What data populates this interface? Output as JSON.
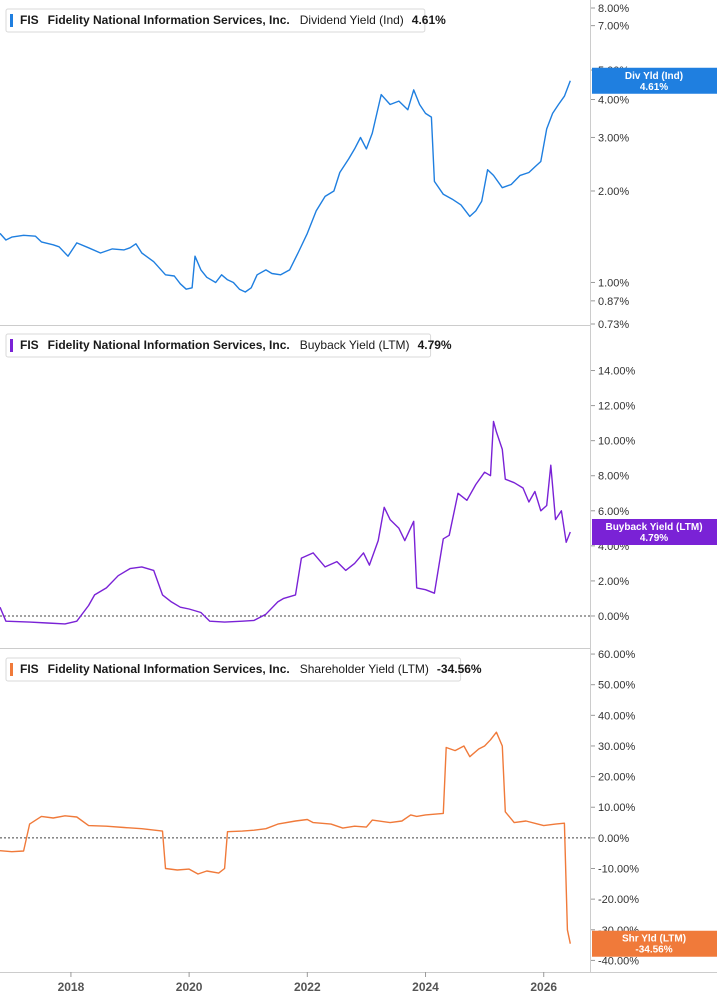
{
  "chart_data": [
    {
      "type": "line",
      "ticker": "FIS",
      "company": "Fidelity National Information Services, Inc.",
      "metric": "Dividend Yield (Ind)",
      "current": "4.61%",
      "badge_label": "Div Yld (Ind)",
      "badge_value": "4.61%",
      "color": "#1f7fe0",
      "scale": "log",
      "ylim": [
        0.73,
        8.0
      ],
      "y_ticks": [
        {
          "v": 8.0,
          "label": "8.00%"
        },
        {
          "v": 7.0,
          "label": "7.00%"
        },
        {
          "v": 5.0,
          "label": "5.00%"
        },
        {
          "v": 4.0,
          "label": "4.00%"
        },
        {
          "v": 3.0,
          "label": "3.00%"
        },
        {
          "v": 2.0,
          "label": "2.00%"
        },
        {
          "v": 1.0,
          "label": "1.00%"
        },
        {
          "v": 0.87,
          "label": "0.87%"
        },
        {
          "v": 0.73,
          "label": "0.73%"
        }
      ],
      "zero_line": false,
      "points": [
        [
          2016.8,
          1.45
        ],
        [
          2016.9,
          1.38
        ],
        [
          2017.0,
          1.41
        ],
        [
          2017.2,
          1.43
        ],
        [
          2017.4,
          1.42
        ],
        [
          2017.5,
          1.36
        ],
        [
          2017.7,
          1.33
        ],
        [
          2017.8,
          1.31
        ],
        [
          2017.95,
          1.22
        ],
        [
          2018.1,
          1.35
        ],
        [
          2018.3,
          1.3
        ],
        [
          2018.5,
          1.25
        ],
        [
          2018.7,
          1.29
        ],
        [
          2018.9,
          1.28
        ],
        [
          2019.0,
          1.3
        ],
        [
          2019.1,
          1.34
        ],
        [
          2019.2,
          1.25
        ],
        [
          2019.4,
          1.17
        ],
        [
          2019.6,
          1.06
        ],
        [
          2019.75,
          1.05
        ],
        [
          2019.85,
          0.99
        ],
        [
          2019.95,
          0.95
        ],
        [
          2020.05,
          0.96
        ],
        [
          2020.1,
          1.22
        ],
        [
          2020.2,
          1.1
        ],
        [
          2020.3,
          1.04
        ],
        [
          2020.45,
          1.0
        ],
        [
          2020.55,
          1.06
        ],
        [
          2020.65,
          1.02
        ],
        [
          2020.75,
          1.0
        ],
        [
          2020.85,
          0.95
        ],
        [
          2020.95,
          0.93
        ],
        [
          2021.05,
          0.96
        ],
        [
          2021.15,
          1.06
        ],
        [
          2021.3,
          1.1
        ],
        [
          2021.4,
          1.07
        ],
        [
          2021.55,
          1.06
        ],
        [
          2021.7,
          1.1
        ],
        [
          2021.85,
          1.26
        ],
        [
          2022.0,
          1.45
        ],
        [
          2022.15,
          1.72
        ],
        [
          2022.3,
          1.92
        ],
        [
          2022.45,
          2.0
        ],
        [
          2022.55,
          2.3
        ],
        [
          2022.7,
          2.55
        ],
        [
          2022.8,
          2.75
        ],
        [
          2022.9,
          3.0
        ],
        [
          2023.0,
          2.75
        ],
        [
          2023.1,
          3.1
        ],
        [
          2023.25,
          4.15
        ],
        [
          2023.4,
          3.85
        ],
        [
          2023.55,
          3.95
        ],
        [
          2023.7,
          3.7
        ],
        [
          2023.8,
          4.3
        ],
        [
          2023.9,
          3.85
        ],
        [
          2024.0,
          3.6
        ],
        [
          2024.1,
          3.5
        ],
        [
          2024.15,
          2.15
        ],
        [
          2024.3,
          1.95
        ],
        [
          2024.45,
          1.88
        ],
        [
          2024.6,
          1.8
        ],
        [
          2024.75,
          1.65
        ],
        [
          2024.85,
          1.72
        ],
        [
          2024.95,
          1.85
        ],
        [
          2025.05,
          2.35
        ],
        [
          2025.15,
          2.25
        ],
        [
          2025.3,
          2.05
        ],
        [
          2025.45,
          2.1
        ],
        [
          2025.6,
          2.25
        ],
        [
          2025.75,
          2.3
        ],
        [
          2025.85,
          2.4
        ],
        [
          2025.95,
          2.5
        ],
        [
          2026.05,
          3.2
        ],
        [
          2026.15,
          3.6
        ],
        [
          2026.25,
          3.85
        ],
        [
          2026.35,
          4.1
        ],
        [
          2026.45,
          4.61
        ]
      ]
    },
    {
      "type": "line",
      "ticker": "FIS",
      "company": "Fidelity National Information Services, Inc.",
      "metric": "Buyback Yield (LTM)",
      "current": "4.79%",
      "badge_label": "Buyback Yield (LTM)",
      "badge_value": "4.79%",
      "color": "#7a22d6",
      "scale": "linear",
      "ylim": [
        -0.8,
        15.0
      ],
      "y_ticks": [
        {
          "v": 14,
          "label": "14.00%"
        },
        {
          "v": 12,
          "label": "12.00%"
        },
        {
          "v": 10,
          "label": "10.00%"
        },
        {
          "v": 8,
          "label": "8.00%"
        },
        {
          "v": 6,
          "label": "6.00%"
        },
        {
          "v": 4,
          "label": "4.00%"
        },
        {
          "v": 2,
          "label": "2.00%"
        },
        {
          "v": 0,
          "label": "0.00%"
        }
      ],
      "zero_line": true,
      "points": [
        [
          2016.8,
          0.5
        ],
        [
          2016.9,
          -0.3
        ],
        [
          2017.3,
          -0.35
        ],
        [
          2017.6,
          -0.4
        ],
        [
          2017.9,
          -0.45
        ],
        [
          2018.1,
          -0.3
        ],
        [
          2018.3,
          0.6
        ],
        [
          2018.4,
          1.2
        ],
        [
          2018.6,
          1.6
        ],
        [
          2018.8,
          2.3
        ],
        [
          2019.0,
          2.7
        ],
        [
          2019.2,
          2.8
        ],
        [
          2019.4,
          2.6
        ],
        [
          2019.55,
          1.2
        ],
        [
          2019.7,
          0.8
        ],
        [
          2019.85,
          0.5
        ],
        [
          2020.0,
          0.4
        ],
        [
          2020.2,
          0.2
        ],
        [
          2020.35,
          -0.3
        ],
        [
          2020.6,
          -0.35
        ],
        [
          2020.9,
          -0.3
        ],
        [
          2021.1,
          -0.25
        ],
        [
          2021.3,
          0.1
        ],
        [
          2021.5,
          0.8
        ],
        [
          2021.6,
          1.0
        ],
        [
          2021.8,
          1.2
        ],
        [
          2021.9,
          3.3
        ],
        [
          2022.1,
          3.6
        ],
        [
          2022.3,
          2.8
        ],
        [
          2022.5,
          3.1
        ],
        [
          2022.65,
          2.6
        ],
        [
          2022.8,
          3.0
        ],
        [
          2022.95,
          3.6
        ],
        [
          2023.05,
          2.9
        ],
        [
          2023.2,
          4.3
        ],
        [
          2023.3,
          6.2
        ],
        [
          2023.4,
          5.5
        ],
        [
          2023.55,
          5.0
        ],
        [
          2023.65,
          4.3
        ],
        [
          2023.8,
          5.4
        ],
        [
          2023.85,
          1.6
        ],
        [
          2024.0,
          1.5
        ],
        [
          2024.15,
          1.3
        ],
        [
          2024.3,
          4.4
        ],
        [
          2024.4,
          4.6
        ],
        [
          2024.55,
          7.0
        ],
        [
          2024.7,
          6.6
        ],
        [
          2024.85,
          7.5
        ],
        [
          2025.0,
          8.2
        ],
        [
          2025.1,
          8.0
        ],
        [
          2025.15,
          11.1
        ],
        [
          2025.2,
          10.5
        ],
        [
          2025.3,
          9.5
        ],
        [
          2025.35,
          7.8
        ],
        [
          2025.5,
          7.6
        ],
        [
          2025.65,
          7.3
        ],
        [
          2025.75,
          6.5
        ],
        [
          2025.85,
          7.1
        ],
        [
          2025.95,
          6.0
        ],
        [
          2026.05,
          6.3
        ],
        [
          2026.12,
          8.6
        ],
        [
          2026.2,
          5.5
        ],
        [
          2026.3,
          6.0
        ],
        [
          2026.38,
          4.2
        ],
        [
          2026.45,
          4.79
        ]
      ]
    },
    {
      "type": "line",
      "ticker": "FIS",
      "company": "Fidelity National Information Services, Inc.",
      "metric": "Shareholder Yield (LTM)",
      "current": "-34.56%",
      "badge_label": "Shr Yld (LTM)",
      "badge_value": "-34.56%",
      "color": "#f07a3a",
      "scale": "linear",
      "ylim": [
        -41.5,
        61.0
      ],
      "y_ticks": [
        {
          "v": 60,
          "label": "60.00%"
        },
        {
          "v": 50,
          "label": "50.00%"
        },
        {
          "v": 40,
          "label": "40.00%"
        },
        {
          "v": 30,
          "label": "30.00%"
        },
        {
          "v": 20,
          "label": "20.00%"
        },
        {
          "v": 10,
          "label": "10.00%"
        },
        {
          "v": 0,
          "label": "0.00%"
        },
        {
          "v": -10,
          "label": "-10.00%"
        },
        {
          "v": -20,
          "label": "-20.00%"
        },
        {
          "v": -30,
          "label": "-30.00%"
        },
        {
          "v": -40,
          "label": "-40.00%"
        }
      ],
      "zero_line": true,
      "points": [
        [
          2016.8,
          -4.2
        ],
        [
          2017.0,
          -4.5
        ],
        [
          2017.2,
          -4.3
        ],
        [
          2017.3,
          4.5
        ],
        [
          2017.5,
          7.0
        ],
        [
          2017.7,
          6.5
        ],
        [
          2017.9,
          7.2
        ],
        [
          2018.1,
          6.8
        ],
        [
          2018.3,
          4.0
        ],
        [
          2018.6,
          3.8
        ],
        [
          2018.9,
          3.4
        ],
        [
          2019.2,
          3.0
        ],
        [
          2019.55,
          2.2
        ],
        [
          2019.6,
          -10.0
        ],
        [
          2019.8,
          -10.5
        ],
        [
          2020.0,
          -10.2
        ],
        [
          2020.15,
          -11.8
        ],
        [
          2020.3,
          -10.8
        ],
        [
          2020.5,
          -11.5
        ],
        [
          2020.6,
          -10.0
        ],
        [
          2020.65,
          2.0
        ],
        [
          2020.9,
          2.2
        ],
        [
          2021.1,
          2.5
        ],
        [
          2021.3,
          3.0
        ],
        [
          2021.5,
          4.5
        ],
        [
          2021.8,
          5.5
        ],
        [
          2022.0,
          6.0
        ],
        [
          2022.1,
          5.0
        ],
        [
          2022.4,
          4.5
        ],
        [
          2022.6,
          3.2
        ],
        [
          2022.8,
          3.8
        ],
        [
          2023.0,
          3.5
        ],
        [
          2023.1,
          5.8
        ],
        [
          2023.4,
          5.0
        ],
        [
          2023.6,
          5.5
        ],
        [
          2023.75,
          7.5
        ],
        [
          2023.85,
          7.0
        ],
        [
          2024.0,
          7.5
        ],
        [
          2024.3,
          8.0
        ],
        [
          2024.35,
          29.5
        ],
        [
          2024.5,
          28.5
        ],
        [
          2024.65,
          30.0
        ],
        [
          2024.75,
          26.5
        ],
        [
          2024.9,
          29.0
        ],
        [
          2025.0,
          30.0
        ],
        [
          2025.1,
          32.0
        ],
        [
          2025.2,
          34.5
        ],
        [
          2025.3,
          30.0
        ],
        [
          2025.35,
          8.5
        ],
        [
          2025.5,
          5.0
        ],
        [
          2025.7,
          5.5
        ],
        [
          2025.9,
          4.5
        ],
        [
          2026.0,
          4.0
        ],
        [
          2026.2,
          4.5
        ],
        [
          2026.35,
          4.8
        ],
        [
          2026.4,
          -30.0
        ],
        [
          2026.45,
          -34.56
        ]
      ]
    }
  ],
  "x_axis": {
    "xlim": [
      2016.8,
      2026.8
    ],
    "ticks": [
      {
        "v": 2018,
        "label": "2018"
      },
      {
        "v": 2020,
        "label": "2020"
      },
      {
        "v": 2022,
        "label": "2022"
      },
      {
        "v": 2024,
        "label": "2024"
      },
      {
        "v": 2026,
        "label": "2026"
      }
    ]
  }
}
